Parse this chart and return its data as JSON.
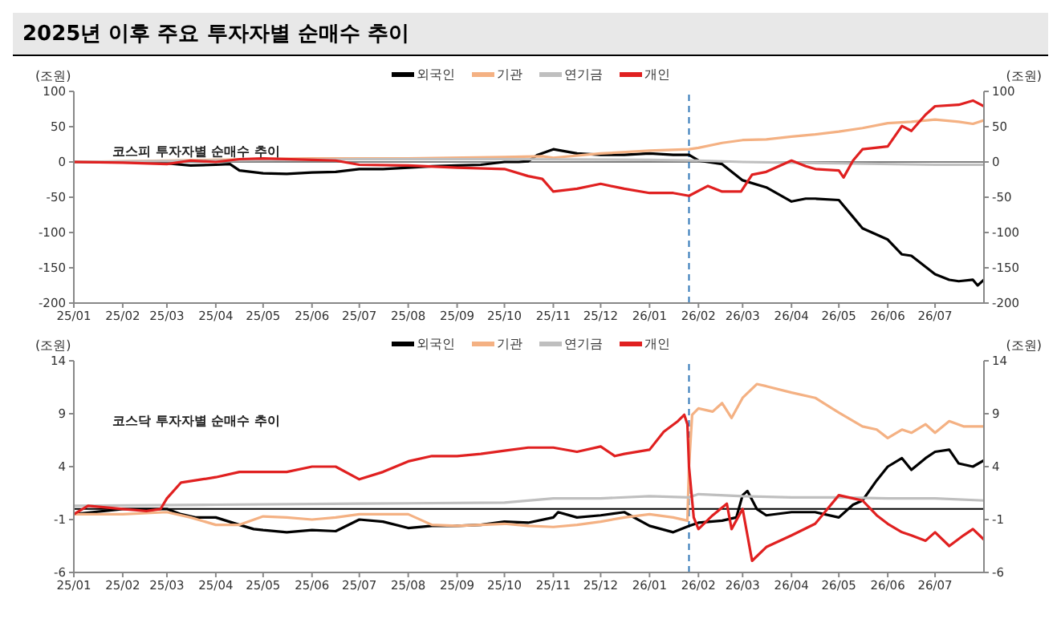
{
  "chart_data": [
    {
      "type": "line",
      "title": "2025년 이후 주요 투자자별 순매수 추이",
      "ylabel": "(조원)",
      "y2label": "(조원)",
      "annotations": [
        "코스피 투자자별 순매수 추이"
      ],
      "legend": "top",
      "xlim": [
        "2025-01-01",
        "2026-08-01"
      ],
      "xticks": [
        {
          "value": "2025-01-01",
          "label": "25/01"
        },
        {
          "value": "2025-02-01",
          "label": "25/02"
        },
        {
          "value": "2025-03-01",
          "label": "25/03"
        },
        {
          "value": "2025-04-01",
          "label": "25/04"
        },
        {
          "value": "2025-05-01",
          "label": "25/05"
        },
        {
          "value": "2025-06-01",
          "label": "25/06"
        },
        {
          "value": "2025-07-01",
          "label": "25/07"
        },
        {
          "value": "2025-08-01",
          "label": "25/08"
        },
        {
          "value": "2025-09-01",
          "label": "25/09"
        },
        {
          "value": "2025-10-01",
          "label": "25/10"
        },
        {
          "value": "2025-11-01",
          "label": "25/11"
        },
        {
          "value": "2025-12-01",
          "label": "25/12"
        },
        {
          "value": "2026-01-01",
          "label": "26/01"
        },
        {
          "value": "2026-02-01",
          "label": "26/02"
        },
        {
          "value": "2026-03-01",
          "label": "26/03"
        },
        {
          "value": "2026-04-01",
          "label": "26/04"
        },
        {
          "value": "2026-05-01",
          "label": "26/05"
        },
        {
          "value": "2026-06-01",
          "label": "26/06"
        },
        {
          "value": "2026-07-01",
          "label": "26/07"
        }
      ],
      "ylim": [
        -200,
        100
      ],
      "yticks": [
        -200,
        -150,
        -100,
        -50,
        0,
        50,
        100
      ],
      "y2lim": [
        -200,
        100
      ],
      "y2ticks": [
        -200,
        -150,
        -100,
        -50,
        0,
        50,
        100
      ],
      "ref_lines": [
        {
          "axis": "y",
          "value": 0,
          "color": "#808080",
          "line_style": "solid"
        },
        {
          "axis": "x",
          "value": "2026-01-26",
          "color": "#2e75b6",
          "line_style": "dashed"
        }
      ],
      "series": [
        {
          "name": "외국인",
          "color": "#000000",
          "x": [
            "2025-01-01",
            "2025-02-01",
            "2025-03-01",
            "2025-03-16",
            "2025-04-01",
            "2025-04-10",
            "2025-04-16",
            "2025-05-01",
            "2025-05-16",
            "2025-06-01",
            "2025-06-16",
            "2025-07-01",
            "2025-07-16",
            "2025-08-01",
            "2025-08-16",
            "2025-09-01",
            "2025-09-16",
            "2025-10-01",
            "2025-10-10",
            "2025-10-16",
            "2025-10-22",
            "2025-11-01",
            "2025-11-16",
            "2025-12-01",
            "2025-12-16",
            "2026-01-01",
            "2026-01-16",
            "2026-01-26",
            "2026-02-01",
            "2026-02-16",
            "2026-03-01",
            "2026-03-16",
            "2026-04-01",
            "2026-04-10",
            "2026-04-16",
            "2026-05-01",
            "2026-05-10",
            "2026-05-16",
            "2026-06-01",
            "2026-06-10",
            "2026-06-16",
            "2026-07-01",
            "2026-07-10",
            "2026-07-16",
            "2026-07-25",
            "2026-07-28",
            "2026-08-01"
          ],
          "values": [
            0,
            0,
            -2,
            -5,
            -4,
            -3,
            -12,
            -16,
            -17,
            -15,
            -14,
            -10,
            -10,
            -8,
            -6,
            -5,
            -4,
            0,
            0,
            1,
            10,
            18,
            12,
            10,
            10,
            12,
            10,
            10,
            2,
            -3,
            -26,
            -36,
            -56,
            -52,
            -52,
            -54,
            -78,
            -94,
            -110,
            -131,
            -133,
            -159,
            -167,
            -169,
            -167,
            -175,
            -167
          ]
        },
        {
          "name": "기관",
          "color": "#f4b183",
          "x": [
            "2025-01-01",
            "2025-04-01",
            "2025-06-01",
            "2025-08-01",
            "2025-10-01",
            "2025-10-25",
            "2025-11-01",
            "2025-12-01",
            "2026-01-01",
            "2026-01-26",
            "2026-02-01",
            "2026-02-16",
            "2026-03-01",
            "2026-03-16",
            "2026-04-01",
            "2026-04-16",
            "2026-05-01",
            "2026-05-16",
            "2026-06-01",
            "2026-06-16",
            "2026-07-01",
            "2026-07-16",
            "2026-07-25",
            "2026-08-01"
          ],
          "values": [
            0,
            3,
            5,
            5,
            7,
            8,
            6,
            12,
            16,
            18,
            20,
            27,
            31,
            32,
            36,
            39,
            43,
            48,
            55,
            57,
            60,
            57,
            54,
            59
          ]
        },
        {
          "name": "연기금",
          "color": "#bfbfbf",
          "x": [
            "2025-01-01",
            "2025-04-01",
            "2025-07-01",
            "2025-10-01",
            "2026-01-01",
            "2026-02-01",
            "2026-03-01",
            "2026-05-01",
            "2026-07-01",
            "2026-08-01"
          ],
          "values": [
            0,
            2,
            4,
            4,
            3,
            2,
            0,
            -2,
            -4,
            -4
          ]
        },
        {
          "name": "개인",
          "color": "#e02020",
          "x": [
            "2025-01-01",
            "2025-02-01",
            "2025-03-01",
            "2025-03-16",
            "2025-04-01",
            "2025-04-16",
            "2025-05-01",
            "2025-06-01",
            "2025-06-16",
            "2025-07-01",
            "2025-08-01",
            "2025-09-01",
            "2025-10-01",
            "2025-10-16",
            "2025-10-25",
            "2025-11-01",
            "2025-11-16",
            "2025-12-01",
            "2025-12-16",
            "2026-01-01",
            "2026-01-16",
            "2026-01-26",
            "2026-02-07",
            "2026-02-16",
            "2026-02-28",
            "2026-03-07",
            "2026-03-16",
            "2026-04-01",
            "2026-04-10",
            "2026-04-16",
            "2026-05-01",
            "2026-05-04",
            "2026-05-10",
            "2026-05-16",
            "2026-06-01",
            "2026-06-10",
            "2026-06-16",
            "2026-06-25",
            "2026-07-01",
            "2026-07-16",
            "2026-07-25",
            "2026-08-01"
          ],
          "values": [
            0,
            -1,
            -3,
            2,
            0,
            4,
            5,
            3,
            2,
            -4,
            -5,
            -8,
            -10,
            -20,
            -24,
            -42,
            -38,
            -31,
            -38,
            -44,
            -44,
            -48,
            -34,
            -42,
            -42,
            -18,
            -14,
            2,
            -6,
            -10,
            -12,
            -22,
            2,
            18,
            22,
            51,
            44,
            67,
            79,
            81,
            87,
            79
          ]
        }
      ]
    },
    {
      "type": "line",
      "ylabel": "(조원)",
      "y2label": "(조원)",
      "annotations": [
        "코스닥 투자자별 순매수 추이"
      ],
      "legend": "top",
      "xlim": [
        "2025-01-01",
        "2026-08-01"
      ],
      "xticks": [
        {
          "value": "2025-01-01",
          "label": "25/01"
        },
        {
          "value": "2025-02-01",
          "label": "25/02"
        },
        {
          "value": "2025-03-01",
          "label": "25/03"
        },
        {
          "value": "2025-04-01",
          "label": "25/04"
        },
        {
          "value": "2025-05-01",
          "label": "25/05"
        },
        {
          "value": "2025-06-01",
          "label": "25/06"
        },
        {
          "value": "2025-07-01",
          "label": "25/07"
        },
        {
          "value": "2025-08-01",
          "label": "25/08"
        },
        {
          "value": "2025-09-01",
          "label": "25/09"
        },
        {
          "value": "2025-10-01",
          "label": "25/10"
        },
        {
          "value": "2025-11-01",
          "label": "25/11"
        },
        {
          "value": "2025-12-01",
          "label": "25/12"
        },
        {
          "value": "2026-01-01",
          "label": "26/01"
        },
        {
          "value": "2026-02-01",
          "label": "26/02"
        },
        {
          "value": "2026-03-01",
          "label": "26/03"
        },
        {
          "value": "2026-04-01",
          "label": "26/04"
        },
        {
          "value": "2026-05-01",
          "label": "26/05"
        },
        {
          "value": "2026-06-01",
          "label": "26/06"
        },
        {
          "value": "2026-07-01",
          "label": "26/07"
        }
      ],
      "ylim": [
        -6,
        14
      ],
      "yticks": [
        -6,
        -1,
        4,
        9,
        14
      ],
      "y2lim": [
        -6,
        14
      ],
      "y2ticks": [
        -6,
        -1,
        4,
        9,
        14
      ],
      "ref_lines": [
        {
          "axis": "y",
          "value": 0,
          "color": "#000000",
          "line_style": "solid"
        },
        {
          "axis": "x",
          "value": "2026-01-26",
          "color": "#2e75b6",
          "line_style": "dashed"
        }
      ],
      "series": [
        {
          "name": "외국인",
          "color": "#000000",
          "x": [
            "2025-01-01",
            "2025-02-01",
            "2025-03-01",
            "2025-03-10",
            "2025-03-19",
            "2025-04-01",
            "2025-04-16",
            "2025-04-25",
            "2025-05-01",
            "2025-05-16",
            "2025-06-01",
            "2025-06-16",
            "2025-07-01",
            "2025-07-16",
            "2025-08-01",
            "2025-08-16",
            "2025-09-01",
            "2025-09-16",
            "2025-10-01",
            "2025-10-16",
            "2025-11-01",
            "2025-11-04",
            "2025-11-16",
            "2025-12-01",
            "2025-12-16",
            "2026-01-01",
            "2026-01-16",
            "2026-01-26",
            "2026-02-01",
            "2026-02-16",
            "2026-02-25",
            "2026-03-01",
            "2026-03-04",
            "2026-03-10",
            "2026-03-16",
            "2026-04-01",
            "2026-04-16",
            "2026-05-01",
            "2026-05-10",
            "2026-05-16",
            "2026-05-25",
            "2026-06-01",
            "2026-06-10",
            "2026-06-16",
            "2026-06-25",
            "2026-07-01",
            "2026-07-10",
            "2026-07-16",
            "2026-07-25",
            "2026-08-01"
          ],
          "values": [
            -0.5,
            0,
            0,
            -0.5,
            -0.8,
            -0.8,
            -1.5,
            -1.9,
            -2,
            -2.2,
            -2,
            -2.1,
            -1,
            -1.2,
            -1.8,
            -1.6,
            -1.6,
            -1.5,
            -1.2,
            -1.3,
            -0.8,
            -0.3,
            -0.8,
            -0.6,
            -0.3,
            -1.6,
            -2.2,
            -1.6,
            -1.3,
            -1.1,
            -0.8,
            1.3,
            1.7,
            0,
            -0.6,
            -0.3,
            -0.3,
            -0.8,
            0.4,
            0.8,
            2.7,
            4,
            4.8,
            3.7,
            4.8,
            5.4,
            5.6,
            4.3,
            4,
            4.6
          ]
        },
        {
          "name": "기관",
          "color": "#f4b183",
          "x": [
            "2025-01-01",
            "2025-02-01",
            "2025-03-01",
            "2025-03-16",
            "2025-04-01",
            "2025-04-16",
            "2025-05-01",
            "2025-05-16",
            "2025-06-01",
            "2025-06-16",
            "2025-07-01",
            "2025-07-16",
            "2025-08-01",
            "2025-08-16",
            "2025-09-01",
            "2025-09-16",
            "2025-10-01",
            "2025-10-16",
            "2025-11-01",
            "2025-11-16",
            "2025-12-01",
            "2025-12-16",
            "2026-01-01",
            "2026-01-16",
            "2026-01-25",
            "2026-01-26",
            "2026-01-28",
            "2026-02-01",
            "2026-02-10",
            "2026-02-16",
            "2026-02-22",
            "2026-03-01",
            "2026-03-10",
            "2026-03-16",
            "2026-04-01",
            "2026-04-16",
            "2026-05-01",
            "2026-05-16",
            "2026-05-25",
            "2026-06-01",
            "2026-06-10",
            "2026-06-16",
            "2026-06-25",
            "2026-07-01",
            "2026-07-10",
            "2026-07-19",
            "2026-08-01"
          ],
          "values": [
            -0.5,
            -0.5,
            -0.3,
            -0.8,
            -1.5,
            -1.5,
            -0.7,
            -0.8,
            -1,
            -0.8,
            -0.5,
            -0.5,
            -0.5,
            -1.5,
            -1.6,
            -1.5,
            -1.4,
            -1.6,
            -1.7,
            -1.5,
            -1.2,
            -0.8,
            -0.5,
            -0.8,
            -1.1,
            4,
            8.9,
            9.5,
            9.2,
            10,
            8.6,
            10.5,
            11.8,
            11.6,
            11,
            10.5,
            9.1,
            7.8,
            7.5,
            6.7,
            7.5,
            7.2,
            8,
            7.2,
            8.3,
            7.8,
            7.8
          ]
        },
        {
          "name": "연기금",
          "color": "#bfbfbf",
          "x": [
            "2025-01-01",
            "2025-04-01",
            "2025-07-01",
            "2025-10-01",
            "2025-11-01",
            "2025-12-01",
            "2026-01-01",
            "2026-01-26",
            "2026-02-01",
            "2026-03-01",
            "2026-04-01",
            "2026-05-01",
            "2026-06-01",
            "2026-07-01",
            "2026-08-01"
          ],
          "values": [
            0.3,
            0.4,
            0.5,
            0.6,
            1,
            1,
            1.2,
            1.1,
            1.4,
            1.2,
            1.1,
            1.1,
            1,
            1,
            0.8
          ]
        },
        {
          "name": "개인",
          "color": "#e02020",
          "x": [
            "2025-01-01",
            "2025-01-10",
            "2025-02-01",
            "2025-02-16",
            "2025-02-25",
            "2025-03-01",
            "2025-03-10",
            "2025-03-19",
            "2025-04-01",
            "2025-04-16",
            "2025-05-01",
            "2025-05-16",
            "2025-06-01",
            "2025-06-16",
            "2025-07-01",
            "2025-07-16",
            "2025-08-01",
            "2025-08-16",
            "2025-09-01",
            "2025-09-16",
            "2025-10-01",
            "2025-10-16",
            "2025-11-01",
            "2025-11-16",
            "2025-12-01",
            "2025-12-10",
            "2025-12-16",
            "2026-01-01",
            "2026-01-10",
            "2026-01-19",
            "2026-01-23",
            "2026-01-25",
            "2026-01-26",
            "2026-01-29",
            "2026-02-01",
            "2026-02-10",
            "2026-02-19",
            "2026-02-22",
            "2026-03-01",
            "2026-03-07",
            "2026-03-16",
            "2026-04-01",
            "2026-04-16",
            "2026-05-01",
            "2026-05-10",
            "2026-05-16",
            "2026-05-25",
            "2026-06-01",
            "2026-06-10",
            "2026-06-16",
            "2026-06-25",
            "2026-07-01",
            "2026-07-10",
            "2026-07-19",
            "2026-07-25",
            "2026-08-01"
          ],
          "values": [
            -0.5,
            0.3,
            0,
            -0.2,
            0,
            1,
            2.5,
            2.7,
            3,
            3.5,
            3.5,
            3.5,
            4,
            4,
            2.8,
            3.5,
            4.5,
            5,
            5,
            5.2,
            5.5,
            5.8,
            5.8,
            5.4,
            5.9,
            5,
            5.2,
            5.6,
            7.3,
            8.3,
            8.9,
            8,
            4,
            -0.8,
            -1.9,
            -0.6,
            0.5,
            -1.9,
            0,
            -4.9,
            -3.6,
            -2.5,
            -1.4,
            1.3,
            1,
            0.8,
            -0.6,
            -1.4,
            -2.2,
            -2.5,
            -3,
            -2.2,
            -3.5,
            -2.5,
            -1.9,
            -2.9
          ]
        }
      ]
    }
  ]
}
